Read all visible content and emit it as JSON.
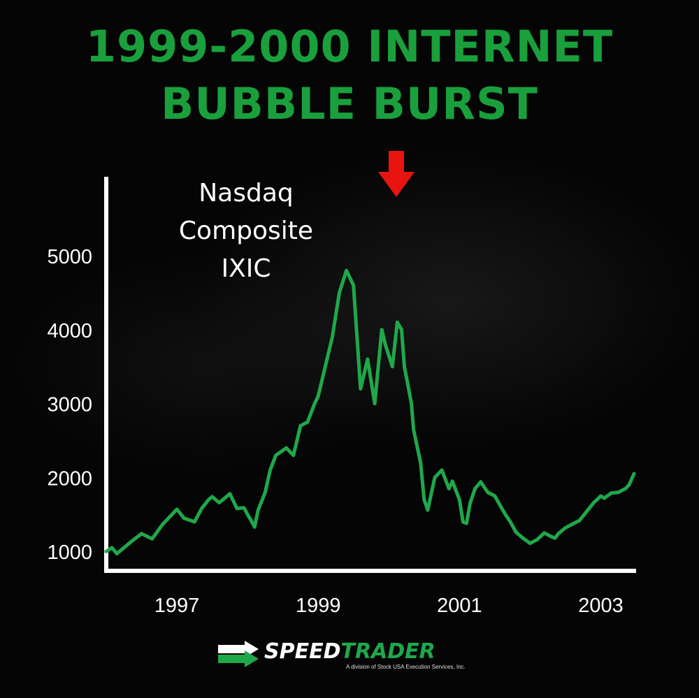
{
  "title": {
    "line1": "1999-2000 INTERNET",
    "line2": "BUBBLE BURST"
  },
  "annotation": {
    "line1": "Nasdaq",
    "line2": "Composite",
    "line3": "IXIC"
  },
  "colors": {
    "title": "#19a03c",
    "line": "#1fa84a",
    "arrow": "#e8140f",
    "axis": "#ffffff",
    "background": "#050505"
  },
  "logo": {
    "icon": "double-arrow-icon",
    "word1": "SPEED",
    "word2": "TRADER",
    "subtitle": "A division of Stock USA Execution Services, Inc."
  },
  "chart_data": {
    "type": "line",
    "xlabel": "",
    "ylabel": "",
    "grid": false,
    "legend": "none",
    "xlim": [
      1996.0,
      2003.5
    ],
    "ylim": [
      0,
      5200
    ],
    "yticks": [
      1000,
      2000,
      3000,
      4000,
      5000
    ],
    "xticks": [
      1997,
      1999,
      2001,
      2003
    ],
    "series": [
      {
        "x": [
          1996.0,
          1996.08,
          1996.15,
          1996.25,
          1996.35,
          1996.5,
          1996.65,
          1996.8,
          1996.9,
          1997.0,
          1997.1,
          1997.25,
          1997.35,
          1997.45,
          1997.5,
          1997.6,
          1997.75,
          1997.85,
          1997.95,
          1998.0,
          1998.05,
          1998.1,
          1998.15,
          1998.25,
          1998.32,
          1998.4,
          1998.55,
          1998.65,
          1998.75,
          1998.85,
          1998.95,
          1999.0,
          1999.1,
          1999.2,
          1999.3,
          1999.4,
          1999.5,
          1999.6,
          1999.7,
          1999.8,
          1999.9,
          1999.95,
          2000.05,
          2000.12,
          2000.18,
          2000.22,
          2000.28,
          2000.32,
          2000.35,
          2000.45,
          2000.5,
          2000.55,
          2000.65,
          2000.7,
          2000.75,
          2000.85,
          2000.9,
          2001.0,
          2001.05,
          2001.1,
          2001.15,
          2001.22,
          2001.3,
          2001.4,
          2001.5,
          2001.6,
          2001.65,
          2001.72,
          2001.8,
          2001.9,
          2002.0,
          2002.1,
          2002.2,
          2002.3,
          2002.35,
          2002.4,
          2002.5,
          2002.6,
          2002.7,
          2002.8,
          2002.9,
          2003.0,
          2003.05,
          2003.15,
          2003.25,
          2003.35,
          2003.4,
          2003.47
        ],
        "values": [
          1000,
          1050,
          970,
          1050,
          1130,
          1240,
          1170,
          1370,
          1470,
          1570,
          1450,
          1400,
          1580,
          1700,
          1740,
          1660,
          1780,
          1580,
          1590,
          1500,
          1420,
          1330,
          1560,
          1800,
          2100,
          2300,
          2400,
          2300,
          2700,
          2750,
          3000,
          3100,
          3500,
          3900,
          4500,
          4800,
          4600,
          3200,
          3600,
          3000,
          4000,
          3800,
          3500,
          4100,
          4000,
          3500,
          3200,
          3000,
          2650,
          2200,
          1700,
          1560,
          2000,
          2050,
          2100,
          1850,
          1950,
          1700,
          1400,
          1380,
          1650,
          1850,
          1940,
          1800,
          1750,
          1580,
          1500,
          1400,
          1260,
          1180,
          1110,
          1160,
          1250,
          1200,
          1180,
          1240,
          1320,
          1370,
          1420,
          1540,
          1660,
          1750,
          1720,
          1790,
          1800,
          1850,
          1900,
          2050
        ]
      }
    ]
  }
}
